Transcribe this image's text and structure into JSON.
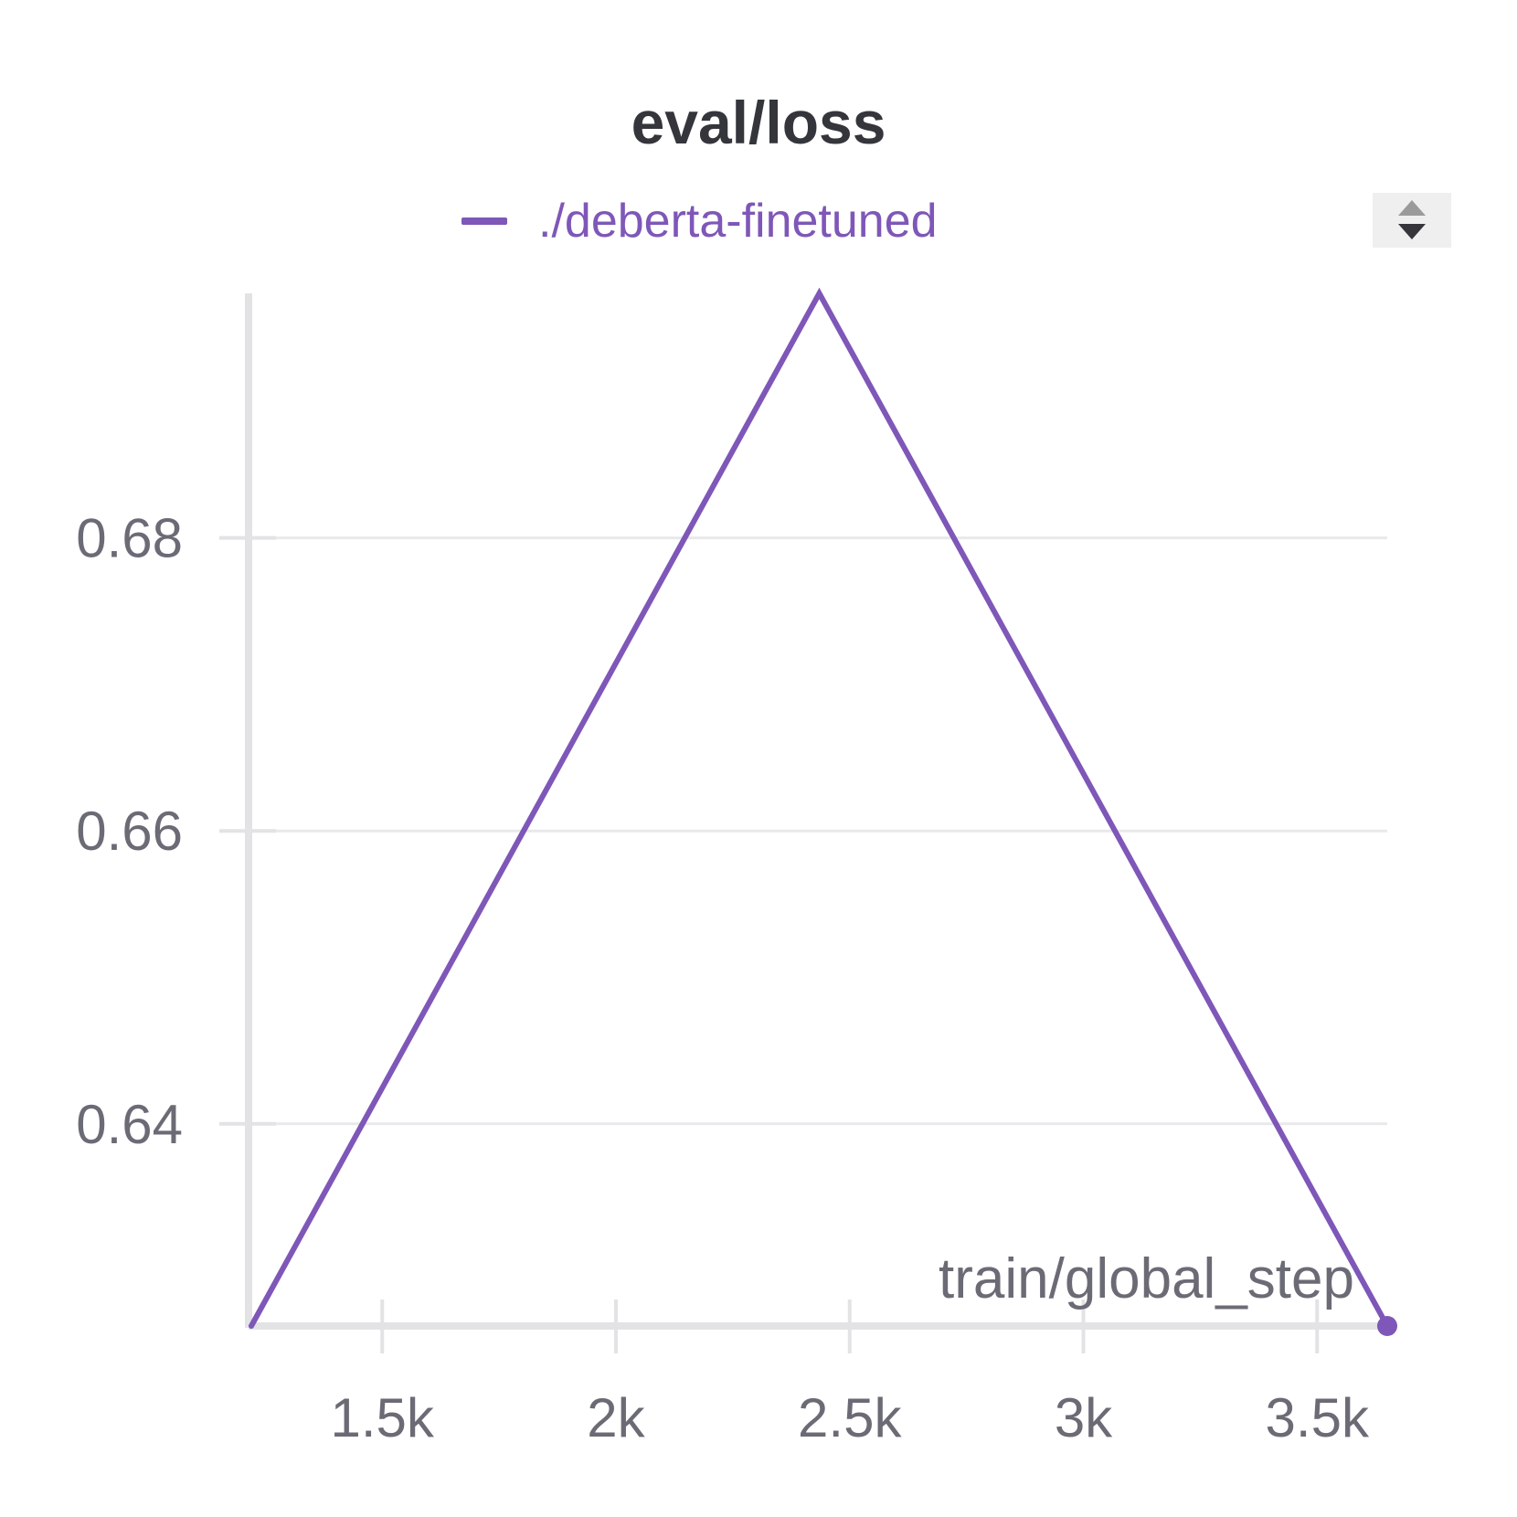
{
  "colors": {
    "series": "#7e57b8",
    "grid": "#e9e9ec",
    "axis": "#e3e3e6",
    "tick_label": "#6b6b76",
    "title": "#34363c"
  },
  "legend": {
    "entries": [
      "./deberta-finetuned"
    ],
    "scroll_icon": "up-down-arrows-icon"
  },
  "chart_data": {
    "type": "line",
    "title": "eval/loss",
    "xlabel": "train/global_step",
    "ylabel": "",
    "xlim": [
      1220,
      3650
    ],
    "ylim": [
      0.6262,
      0.6967
    ],
    "x_ticks": [
      1500,
      2000,
      2500,
      3000,
      3500
    ],
    "x_tick_labels": [
      "1.5k",
      "2k",
      "2.5k",
      "3k",
      "3.5k"
    ],
    "y_ticks": [
      0.64,
      0.66,
      0.68
    ],
    "y_tick_labels": [
      "0.64",
      "0.66",
      "0.68"
    ],
    "grid": true,
    "legend_position": "top-center",
    "series": [
      {
        "name": "./deberta-finetuned",
        "x": [
          1220,
          2435,
          3650
        ],
        "y": [
          0.6262,
          0.6967,
          0.6262
        ]
      }
    ]
  }
}
